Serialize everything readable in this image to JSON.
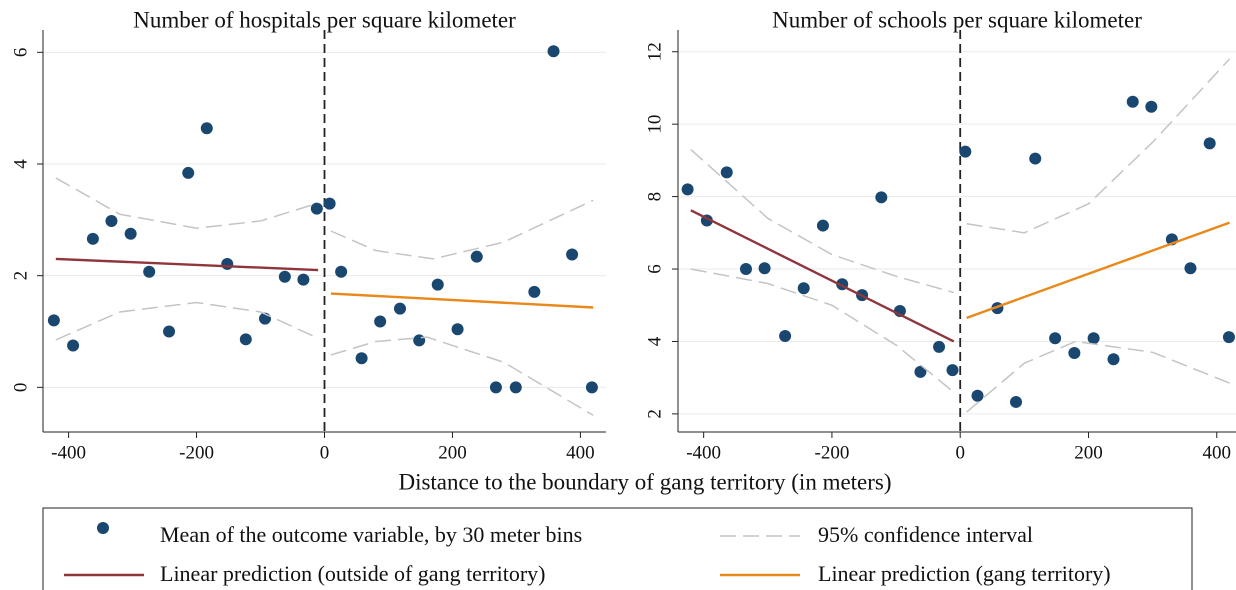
{
  "chart_data": [
    {
      "type": "scatter",
      "title": "Number of hospitals per square kilometer",
      "xlim": [
        -440,
        440
      ],
      "ylim": [
        -0.8,
        6.4
      ],
      "xticks": [
        -400,
        -200,
        0,
        200,
        400
      ],
      "yticks": [
        0,
        2,
        4,
        6
      ],
      "grid": true,
      "vline": 0,
      "series": [
        {
          "name": "Mean of the outcome variable, by 30 meter bins",
          "mode": "markers",
          "color": "#1a476f",
          "x": [
            -423,
            -393,
            -362,
            -333,
            -303,
            -274,
            -243,
            -213,
            -184,
            -152,
            -123,
            -93,
            -62,
            -33,
            -12,
            8,
            26,
            58,
            87,
            118,
            148,
            177,
            208,
            238,
            268,
            299,
            328,
            358,
            387,
            418
          ],
          "values": [
            1.2,
            0.75,
            2.66,
            2.98,
            2.75,
            2.07,
            1.0,
            3.84,
            4.64,
            2.21,
            0.86,
            1.23,
            1.98,
            1.93,
            3.2,
            3.29,
            2.07,
            0.52,
            1.18,
            1.41,
            0.84,
            1.84,
            1.04,
            2.34,
            0,
            0,
            1.71,
            6.02,
            2.38,
            0
          ]
        },
        {
          "name": "Linear prediction (outside of gang territory)",
          "mode": "line",
          "color": "#90353b",
          "x": [
            -420,
            -10
          ],
          "values": [
            2.3,
            2.1
          ]
        },
        {
          "name": "Linear prediction (gang territory)",
          "mode": "line",
          "color": "#e8891a",
          "x": [
            10,
            420
          ],
          "values": [
            1.68,
            1.43
          ]
        },
        {
          "name": "95% confidence interval",
          "mode": "line",
          "dash": true,
          "color": "#c4c4c4",
          "x": [
            -420,
            -320,
            -200,
            -100,
            -10
          ],
          "values": [
            3.75,
            3.1,
            2.85,
            2.98,
            3.3
          ]
        },
        {
          "mode": "line",
          "dash": true,
          "color": "#c4c4c4",
          "x": [
            -420,
            -320,
            -200,
            -100,
            -10
          ],
          "values": [
            0.85,
            1.35,
            1.52,
            1.35,
            0.88
          ]
        },
        {
          "mode": "line",
          "dash": true,
          "color": "#c4c4c4",
          "x": [
            10,
            80,
            170,
            280,
            420
          ],
          "values": [
            2.8,
            2.45,
            2.3,
            2.6,
            3.35
          ]
        },
        {
          "mode": "line",
          "dash": true,
          "color": "#c4c4c4",
          "x": [
            10,
            80,
            160,
            280,
            420
          ],
          "values": [
            0.58,
            0.82,
            0.9,
            0.45,
            -0.5
          ]
        }
      ]
    },
    {
      "type": "scatter",
      "title": "Number of schools per square kilometer",
      "xlim": [
        -440,
        430
      ],
      "ylim": [
        1.5,
        12.6
      ],
      "xticks": [
        -400,
        -200,
        0,
        200,
        400
      ],
      "yticks": [
        2,
        4,
        6,
        8,
        10,
        12
      ],
      "grid": true,
      "vline": 0,
      "series": [
        {
          "mode": "markers",
          "color": "#1a476f",
          "x": [
            -425,
            -395,
            -364,
            -334,
            -305,
            -273,
            -244,
            -214,
            -184,
            -153,
            -123,
            -94,
            -62,
            -33,
            -12,
            8,
            27,
            58,
            87,
            117,
            148,
            178,
            208,
            239,
            269,
            298,
            330,
            359,
            389,
            419
          ],
          "values": [
            8.2,
            7.34,
            8.67,
            6.0,
            6.02,
            4.15,
            5.47,
            7.2,
            5.58,
            5.28,
            7.98,
            4.84,
            3.16,
            3.85,
            3.21,
            9.24,
            2.5,
            4.92,
            2.33,
            9.05,
            4.09,
            3.68,
            4.09,
            3.51,
            10.62,
            10.48,
            6.82,
            6.02,
            9.47,
            4.12
          ]
        },
        {
          "mode": "line",
          "color": "#90353b",
          "x": [
            -420,
            -10
          ],
          "values": [
            7.62,
            4.0
          ]
        },
        {
          "mode": "line",
          "color": "#e8891a",
          "x": [
            10,
            420
          ],
          "values": [
            4.65,
            7.28
          ]
        },
        {
          "mode": "line",
          "dash": true,
          "color": "#c4c4c4",
          "x": [
            -420,
            -300,
            -200,
            -100,
            -10
          ],
          "values": [
            9.3,
            7.4,
            6.4,
            5.8,
            5.35
          ]
        },
        {
          "mode": "line",
          "dash": true,
          "color": "#c4c4c4",
          "x": [
            -420,
            -300,
            -200,
            -100,
            -10
          ],
          "values": [
            6.0,
            5.6,
            5.0,
            3.9,
            2.6
          ]
        },
        {
          "mode": "line",
          "dash": true,
          "color": "#c4c4c4",
          "x": [
            10,
            100,
            200,
            300,
            420
          ],
          "values": [
            7.25,
            7.0,
            7.8,
            9.5,
            11.8
          ]
        },
        {
          "mode": "line",
          "dash": true,
          "color": "#c4c4c4",
          "x": [
            10,
            100,
            180,
            300,
            420
          ],
          "values": [
            2.05,
            3.4,
            4.0,
            3.7,
            2.85
          ]
        }
      ]
    }
  ],
  "x_label": "Distance to the boundary of gang territory (in meters)"
}
